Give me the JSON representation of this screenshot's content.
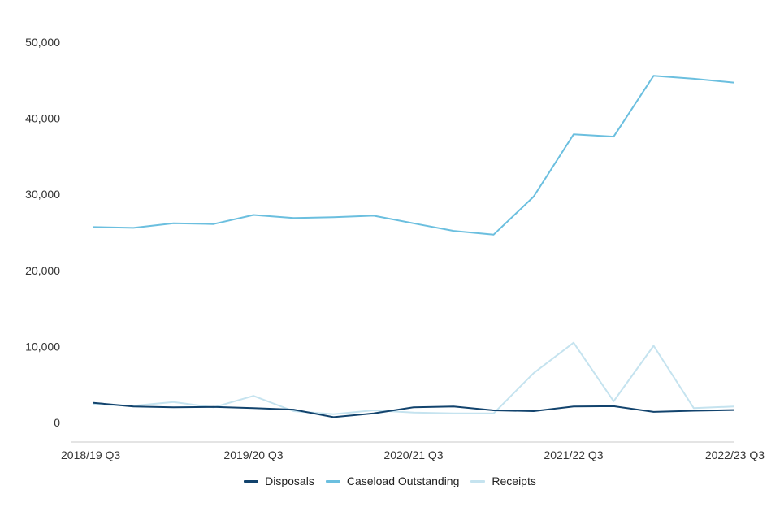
{
  "chart_data": {
    "type": "line",
    "title": "",
    "xlabel": "",
    "ylabel": "",
    "ylim": [
      0,
      50000
    ],
    "y_ticks": [
      0,
      10000,
      20000,
      30000,
      40000,
      50000
    ],
    "y_tick_labels": [
      "0",
      "10,000",
      "20,000",
      "30,000",
      "40,000",
      "50,000"
    ],
    "x_tick_labels": [
      "2018/19 Q3",
      "2019/20 Q3",
      "2020/21 Q3",
      "2021/22 Q3",
      "2022/23 Q3"
    ],
    "x_tick_positions": [
      0,
      4,
      8,
      12,
      16
    ],
    "categories": [
      "2018/19 Q3",
      "2018/19 Q4",
      "2019/20 Q1",
      "2019/20 Q2",
      "2019/20 Q3",
      "2019/20 Q4",
      "2020/21 Q1",
      "2020/21 Q2",
      "2020/21 Q3",
      "2020/21 Q4",
      "2021/22 Q1",
      "2021/22 Q2",
      "2021/22 Q3",
      "2021/22 Q4",
      "2022/23 Q1",
      "2022/23 Q2",
      "2022/23 Q3"
    ],
    "grid": false,
    "legend_position": "bottom",
    "series": [
      {
        "name": "Disposals",
        "color": "#12436d",
        "values": [
          2600,
          2100,
          2000,
          2050,
          1900,
          1700,
          700,
          1200,
          2000,
          2100,
          1600,
          1500,
          2100,
          2150,
          1400,
          1550,
          1650
        ]
      },
      {
        "name": "Caseload Outstanding",
        "color": "#6bbfdf",
        "values": [
          25700,
          25600,
          26200,
          26100,
          27300,
          26900,
          27000,
          27200,
          26200,
          25200,
          24700,
          29700,
          37900,
          37600,
          45600,
          45200,
          44700
        ]
      },
      {
        "name": "Receipts",
        "color": "#c5e3ef",
        "values": [
          2400,
          2200,
          2700,
          2000,
          3500,
          1500,
          1100,
          1600,
          1300,
          1200,
          1200,
          6500,
          10500,
          2800,
          10100,
          1900,
          2100
        ]
      }
    ]
  }
}
